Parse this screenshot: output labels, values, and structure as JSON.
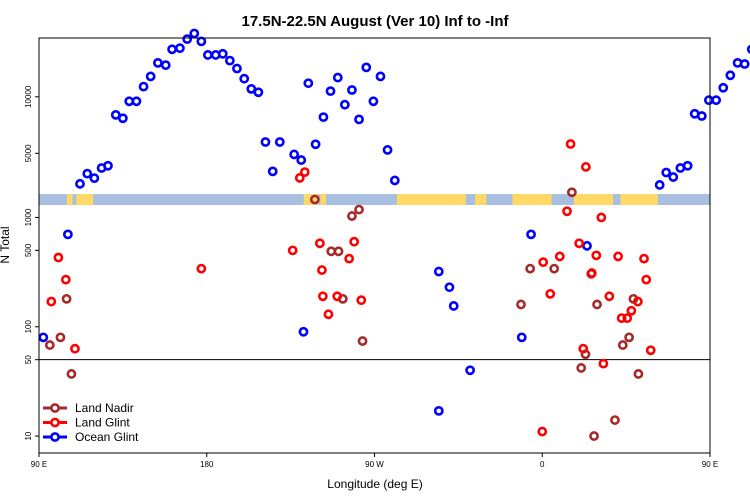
{
  "chart_data": {
    "type": "scatter",
    "title": "17.5N-22.5N August (Ver 10)   Inf to -Inf",
    "xlabel": "Longitude (deg E)",
    "ylabel": "N Total",
    "xlim": [
      90,
      450
    ],
    "x_ticks": [
      {
        "value": 90,
        "label": "90 E"
      },
      {
        "value": 180,
        "label": "180"
      },
      {
        "value": 270,
        "label": "90 W"
      },
      {
        "value": 360,
        "label": "0"
      },
      {
        "value": 450,
        "label": "90 E"
      },
      {
        "value": 540,
        "label": "180"
      }
    ],
    "lower_panel": {
      "scale": "log",
      "ylim": [
        7,
        1300
      ],
      "y_ticks": [
        10,
        50,
        100,
        500,
        1000
      ],
      "reference_line": 50
    },
    "upper_panel": {
      "scale": "linear",
      "ylim": [
        1400,
        15200
      ],
      "y_ticks": [
        5000,
        10000
      ]
    },
    "legend": {
      "placement": "bottom-left",
      "entries": [
        {
          "label": "Land Nadir",
          "color": "#a52a2a"
        },
        {
          "label": "Land Glint",
          "color": "#ff0000"
        },
        {
          "label": "Ocean Glint",
          "color": "#0000ff"
        }
      ]
    },
    "colors": {
      "land_band": "#ffd966",
      "ocean_band": "#a8bfe0",
      "ref_line": "#000000"
    },
    "series": [
      {
        "name": "Ocean Glint",
        "panel": "upper",
        "points": [
          [
            112.0,
            2300
          ],
          [
            115.9,
            3200
          ],
          [
            119.7,
            2800
          ],
          [
            123.6,
            3700
          ],
          [
            127.0,
            3900
          ],
          [
            131.2,
            8400
          ],
          [
            135.0,
            8100
          ],
          [
            138.4,
            9600
          ],
          [
            142.3,
            9600
          ],
          [
            146.1,
            10900
          ],
          [
            149.9,
            11800
          ],
          [
            153.8,
            13000
          ],
          [
            158.0,
            12800
          ],
          [
            161.4,
            14200
          ],
          [
            165.6,
            14300
          ],
          [
            169.5,
            15100
          ],
          [
            173.3,
            15600
          ],
          [
            177.1,
            14900
          ],
          [
            180.6,
            13700
          ],
          [
            184.8,
            13700
          ],
          [
            188.6,
            13800
          ],
          [
            192.4,
            13200
          ],
          [
            196.2,
            12500
          ],
          [
            200.1,
            11600
          ],
          [
            203.9,
            10700
          ],
          [
            207.7,
            10400
          ],
          [
            211.5,
            6000
          ],
          [
            215.4,
            3400
          ],
          [
            219.2,
            6000
          ],
          [
            226.9,
            4900
          ],
          [
            230.7,
            4400
          ],
          [
            234.5,
            11200
          ],
          [
            238.4,
            5800
          ],
          [
            242.6,
            8200
          ],
          [
            246.4,
            10500
          ],
          [
            250.3,
            11700
          ],
          [
            254.1,
            9300
          ],
          [
            257.9,
            10600
          ],
          [
            261.7,
            8000
          ],
          [
            265.6,
            12600
          ],
          [
            269.4,
            9600
          ],
          [
            273.2,
            11800
          ],
          [
            277.0,
            5300
          ],
          [
            280.9,
            2600
          ],
          [
            423.0,
            2200
          ],
          [
            426.5,
            3300
          ],
          [
            430.3,
            2900
          ],
          [
            434.1,
            3700
          ],
          [
            438.0,
            3900
          ],
          [
            441.8,
            8500
          ],
          [
            445.6,
            8300
          ],
          [
            449.4,
            9700
          ],
          [
            453.3,
            9700
          ],
          [
            457.1,
            10800
          ],
          [
            460.9,
            11900
          ],
          [
            464.8,
            13000
          ],
          [
            468.6,
            12900
          ],
          [
            472.4,
            14200
          ]
        ]
      },
      {
        "name": "Ocean Glint",
        "panel": "lower",
        "points": [
          [
            92.3,
            80
          ],
          [
            105.5,
            700
          ],
          [
            231.9,
            90
          ],
          [
            304.5,
            320
          ],
          [
            304.5,
            17
          ],
          [
            310.2,
            230
          ],
          [
            312.5,
            155
          ],
          [
            321.3,
            40
          ],
          [
            349.0,
            80
          ],
          [
            354.0,
            700
          ],
          [
            384.0,
            550
          ]
        ]
      },
      {
        "name": "Land Nadir",
        "panel": "lower",
        "points": [
          [
            95.8,
            68
          ],
          [
            101.5,
            80
          ],
          [
            104.8,
            180
          ],
          [
            107.4,
            37
          ],
          [
            238.0,
            1460
          ],
          [
            246.8,
            490
          ],
          [
            250.7,
            490
          ],
          [
            253.0,
            180
          ],
          [
            257.9,
            1030
          ],
          [
            261.7,
            1180
          ],
          [
            263.6,
            74
          ],
          [
            348.6,
            160
          ],
          [
            353.5,
            340
          ],
          [
            366.4,
            340
          ],
          [
            375.9,
            1700
          ],
          [
            380.9,
            42
          ],
          [
            383.2,
            56
          ],
          [
            386.3,
            305
          ],
          [
            387.8,
            10
          ],
          [
            389.4,
            160
          ],
          [
            399.0,
            14
          ],
          [
            403.2,
            68
          ],
          [
            406.6,
            80
          ],
          [
            408.9,
            180
          ],
          [
            411.6,
            37
          ]
        ]
      },
      {
        "name": "Land Glint",
        "panel": "lower",
        "points": [
          [
            96.6,
            170
          ],
          [
            100.4,
            430
          ],
          [
            104.4,
            270
          ],
          [
            109.3,
            63
          ],
          [
            177.1,
            340
          ],
          [
            226.1,
            500
          ],
          [
            229.9,
            2300
          ],
          [
            232.6,
            2600
          ],
          [
            240.7,
            580
          ],
          [
            241.8,
            330
          ],
          [
            242.3,
            190
          ],
          [
            245.3,
            130
          ],
          [
            250.0,
            190
          ],
          [
            256.4,
            420
          ],
          [
            259.1,
            600
          ],
          [
            262.9,
            175
          ],
          [
            360.0,
            11
          ],
          [
            360.5,
            390
          ],
          [
            364.3,
            200
          ],
          [
            369.4,
            440
          ],
          [
            373.3,
            1140
          ],
          [
            375.2,
            4700
          ],
          [
            379.8,
            580
          ],
          [
            382.0,
            63
          ],
          [
            383.4,
            2900
          ],
          [
            386.6,
            310
          ],
          [
            389.0,
            450
          ],
          [
            391.7,
            1000
          ],
          [
            392.8,
            46
          ],
          [
            396.0,
            190
          ],
          [
            400.7,
            440
          ],
          [
            402.6,
            120
          ],
          [
            405.6,
            120
          ],
          [
            407.8,
            140
          ],
          [
            411.3,
            170
          ],
          [
            414.6,
            420
          ],
          [
            415.8,
            270
          ],
          [
            418.2,
            61
          ]
        ]
      }
    ]
  }
}
